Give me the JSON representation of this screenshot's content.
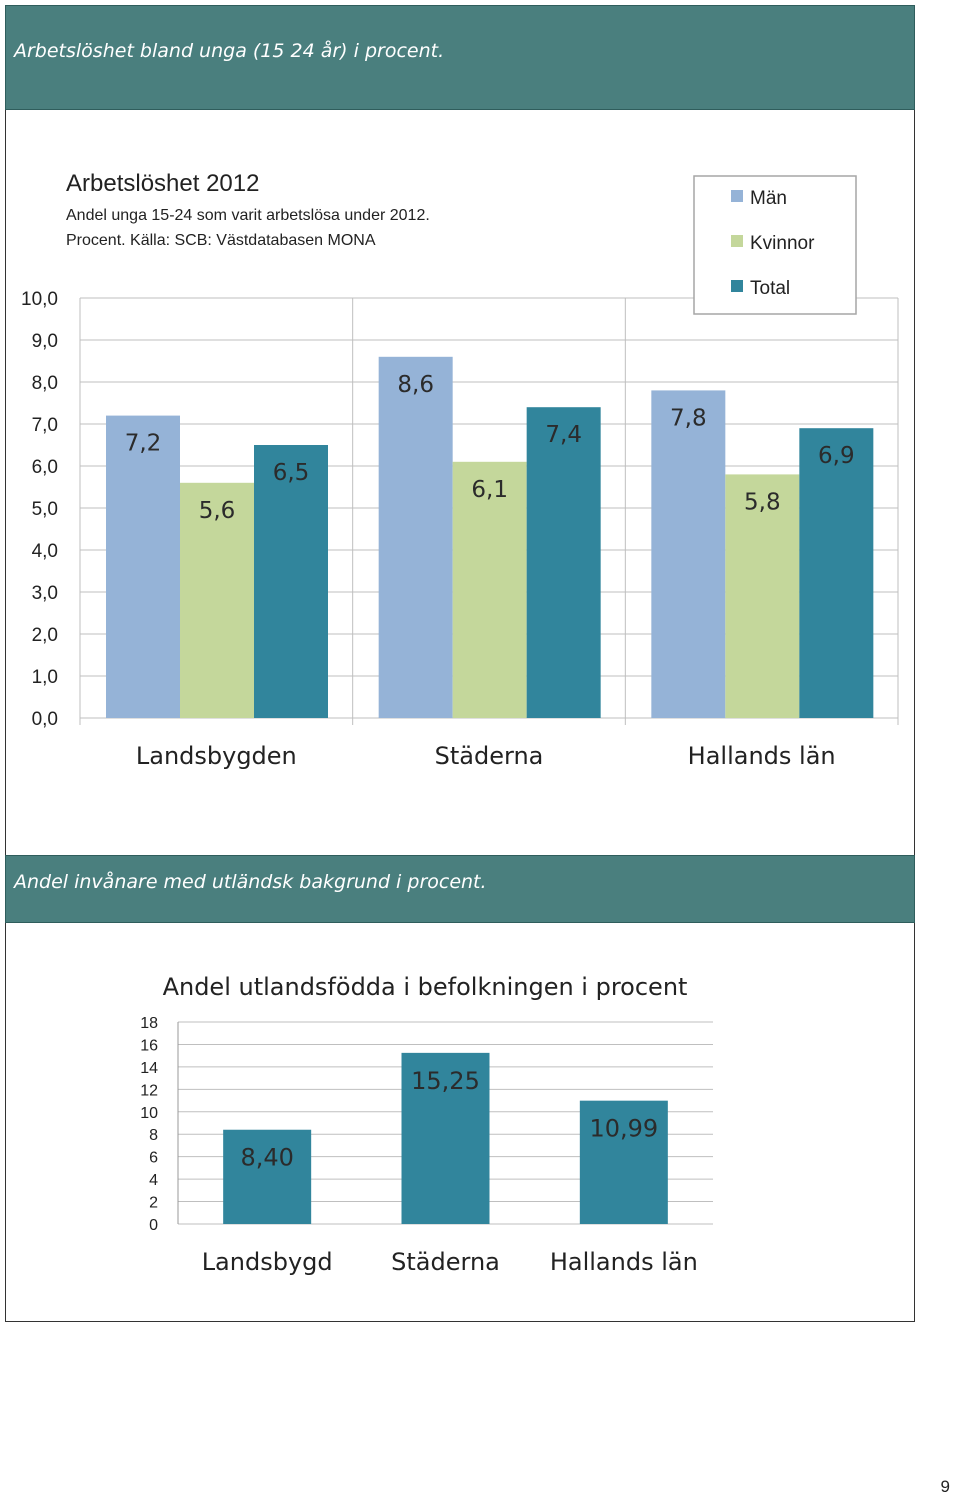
{
  "section1": {
    "header": "Arbetslöshet bland unga (15 24 år) i procent."
  },
  "section2": {
    "header": "Andel invånare med utländsk bakgrund i procent."
  },
  "page_number": "9",
  "chart_data": [
    {
      "type": "bar",
      "title": "Arbetslöshet 2012",
      "subtitle_line1": "Andel unga 15-24 som varit arbetslösa under 2012.",
      "subtitle_line2": "Procent. Källa: SCB: Västdatabasen MONA",
      "categories": [
        "Landsbygden",
        "Städerna",
        "Hallands län"
      ],
      "series": [
        {
          "name": "Män",
          "values": [
            7.2,
            8.6,
            7.8
          ],
          "color": "#95b3d7"
        },
        {
          "name": "Kvinnor",
          "values": [
            5.6,
            6.1,
            5.8
          ],
          "color": "#c4d79b"
        },
        {
          "name": "Total",
          "values": [
            6.5,
            7.4,
            6.9
          ],
          "color": "#31859c"
        }
      ],
      "data_labels": [
        [
          "7,2",
          "5,6",
          "6,5"
        ],
        [
          "8,6",
          "6,1",
          "7,4"
        ],
        [
          "7,8",
          "5,8",
          "6,9"
        ]
      ],
      "yticks": [
        "0,0",
        "1,0",
        "2,0",
        "3,0",
        "4,0",
        "5,0",
        "6,0",
        "7,0",
        "8,0",
        "9,0",
        "10,0"
      ],
      "ylim": [
        0,
        10
      ],
      "grid": true,
      "legend": "top-right"
    },
    {
      "type": "bar",
      "title": "Andel utlandsfödda i befolkningen i procent",
      "categories": [
        "Landsbygd",
        "Städerna",
        "Hallands län"
      ],
      "values": [
        8.4,
        15.25,
        10.99
      ],
      "data_labels": [
        "8,40",
        "15,25",
        "10,99"
      ],
      "color": "#31859c",
      "yticks": [
        "0",
        "2",
        "4",
        "6",
        "8",
        "10",
        "12",
        "14",
        "16",
        "18"
      ],
      "ylim": [
        0,
        18
      ],
      "grid": true
    }
  ]
}
